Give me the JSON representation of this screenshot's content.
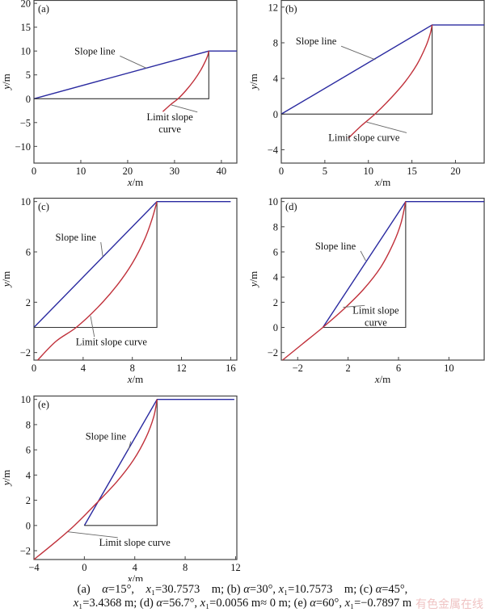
{
  "chart_data": [
    {
      "id": "a",
      "type": "line",
      "panel_label": "(a)",
      "xlabel": "x/m",
      "ylabel": "y/m",
      "xlim": [
        0,
        43.3
      ],
      "ylim": [
        -13.5,
        20.7
      ],
      "xticks": [
        0,
        10,
        20,
        30,
        40
      ],
      "yticks": [
        -10,
        -5,
        0,
        5,
        10,
        15,
        20
      ],
      "alpha_deg": 15,
      "x1": 30.7573,
      "series": [
        {
          "name": "Slope line",
          "color": "#2a2aa0",
          "points": [
            [
              0,
              0
            ],
            [
              37.32,
              10
            ],
            [
              43.3,
              10
            ]
          ]
        },
        {
          "name": "Base",
          "color": "#333333",
          "points": [
            [
              0,
              0
            ],
            [
              37.32,
              0
            ],
            [
              37.32,
              10
            ]
          ]
        },
        {
          "name": "Limit slope curve",
          "color": "#c0303a",
          "points": [
            [
              27.5,
              -2.7
            ],
            [
              29.2,
              -1.2
            ],
            [
              30.76,
              0
            ],
            [
              32.5,
              1.8
            ],
            [
              34.2,
              3.9
            ],
            [
              35.6,
              6.0
            ],
            [
              36.6,
              7.9
            ],
            [
              37.1,
              9.1
            ],
            [
              37.32,
              10
            ]
          ]
        }
      ],
      "annotations": [
        {
          "text": [
            "Slope line"
          ],
          "target": [
            24,
            6.4
          ],
          "label_at": [
            13,
            9.3
          ]
        },
        {
          "text": [
            "Limit slope",
            "curve"
          ],
          "target": [
            29.3,
            -1.3
          ],
          "label_at": [
            29,
            -4.5
          ]
        }
      ]
    },
    {
      "id": "b",
      "type": "line",
      "panel_label": "(b)",
      "xlabel": "x/m",
      "ylabel": "y/m",
      "xlim": [
        0,
        23.3
      ],
      "ylim": [
        -5.5,
        12.8
      ],
      "xticks": [
        0,
        5,
        10,
        15,
        20
      ],
      "yticks": [
        -4,
        0,
        4,
        8,
        12
      ],
      "alpha_deg": 30,
      "x1": 10.7573,
      "series": [
        {
          "name": "Slope line",
          "color": "#2a2aa0",
          "points": [
            [
              0,
              0
            ],
            [
              17.32,
              10
            ],
            [
              23.3,
              10
            ]
          ]
        },
        {
          "name": "Base",
          "color": "#333333",
          "points": [
            [
              0,
              0
            ],
            [
              17.32,
              0
            ],
            [
              17.32,
              10
            ]
          ]
        },
        {
          "name": "Limit slope curve",
          "color": "#c0303a",
          "points": [
            [
              7.7,
              -2.7
            ],
            [
              9.2,
              -1.3
            ],
            [
              10.76,
              0
            ],
            [
              12.5,
              1.7
            ],
            [
              14.2,
              3.6
            ],
            [
              15.6,
              5.6
            ],
            [
              16.6,
              7.6
            ],
            [
              17.1,
              9.0
            ],
            [
              17.32,
              10
            ]
          ]
        }
      ],
      "annotations": [
        {
          "text": [
            "Slope line"
          ],
          "target": [
            10.8,
            6.1
          ],
          "label_at": [
            4,
            7.8
          ]
        },
        {
          "text": [
            "Limit slope curve"
          ],
          "target": [
            9.8,
            -0.9
          ],
          "label_at": [
            9.5,
            -3.0
          ]
        }
      ]
    },
    {
      "id": "c",
      "type": "line",
      "panel_label": "(c)",
      "xlabel": "x/m",
      "ylabel": "y/m",
      "xlim": [
        0,
        16.5
      ],
      "ylim": [
        -2.6,
        10.3
      ],
      "xticks": [
        0,
        4,
        8,
        12,
        16
      ],
      "yticks": [
        -2,
        2,
        6,
        10
      ],
      "alpha_deg": 45,
      "x1": 3.4368,
      "series": [
        {
          "name": "Slope line",
          "color": "#2a2aa0",
          "points": [
            [
              0,
              0
            ],
            [
              10,
              10
            ],
            [
              16,
              10
            ]
          ]
        },
        {
          "name": "Base",
          "color": "#333333",
          "points": [
            [
              0,
              0
            ],
            [
              10,
              0
            ],
            [
              10,
              10
            ]
          ]
        },
        {
          "name": "Limit slope curve",
          "color": "#c0303a",
          "points": [
            [
              0.3,
              -2.6
            ],
            [
              1.8,
              -1.1
            ],
            [
              3.44,
              0
            ],
            [
              5.2,
              1.6
            ],
            [
              6.8,
              3.4
            ],
            [
              8.0,
              5.1
            ],
            [
              9.0,
              7.0
            ],
            [
              9.6,
              8.6
            ],
            [
              10,
              10
            ]
          ]
        }
      ],
      "annotations": [
        {
          "text": [
            "Slope line"
          ],
          "target": [
            5.6,
            5.6
          ],
          "label_at": [
            3.4,
            6.9
          ]
        },
        {
          "text": [
            "Limit slope curve"
          ],
          "target": [
            4.6,
            0.9
          ],
          "label_at": [
            6.3,
            -1.4
          ]
        }
      ]
    },
    {
      "id": "d",
      "type": "line",
      "panel_label": "(d)",
      "xlabel": "x/m",
      "ylabel": "y/m",
      "xlim": [
        -3.3,
        12.8
      ],
      "ylim": [
        -2.6,
        10.3
      ],
      "xticks": [
        -2,
        2,
        6,
        10
      ],
      "yticks": [
        -2,
        0,
        2,
        4,
        6,
        8,
        10
      ],
      "alpha_deg": 56.7,
      "x1": 0.0056,
      "series": [
        {
          "name": "Slope line",
          "color": "#2a2aa0",
          "points": [
            [
              0,
              0
            ],
            [
              6.57,
              10
            ],
            [
              12.8,
              10
            ]
          ]
        },
        {
          "name": "Base",
          "color": "#333333",
          "points": [
            [
              0,
              0
            ],
            [
              6.57,
              0
            ],
            [
              6.57,
              10
            ]
          ]
        },
        {
          "name": "Limit slope curve",
          "color": "#c0303a",
          "points": [
            [
              -3.2,
              -2.6
            ],
            [
              -1.6,
              -1.3
            ],
            [
              0,
              0
            ],
            [
              1.6,
              1.4
            ],
            [
              3.2,
              3.0
            ],
            [
              4.6,
              4.8
            ],
            [
              5.6,
              6.7
            ],
            [
              6.2,
              8.3
            ],
            [
              6.57,
              10
            ]
          ]
        }
      ],
      "annotations": [
        {
          "text": [
            "Slope line"
          ],
          "target": [
            3.4,
            5.3
          ],
          "label_at": [
            1.0,
            6.2
          ]
        },
        {
          "text": [
            "Limit slope",
            "curve"
          ],
          "target": [
            1.6,
            1.6
          ],
          "label_at": [
            4.2,
            1.1
          ]
        }
      ]
    },
    {
      "id": "e",
      "type": "line",
      "panel_label": "(e)",
      "xlabel": "x/m",
      "ylabel": "y/m",
      "xlim": [
        -4.0,
        12.1
      ],
      "ylim": [
        -2.7,
        10.3
      ],
      "xticks": [
        -4,
        0,
        4,
        8,
        12
      ],
      "yticks": [
        -2,
        0,
        2,
        4,
        6,
        8,
        10
      ],
      "alpha_deg": 60,
      "x1": -0.7897,
      "series": [
        {
          "name": "Slope line",
          "color": "#2a2aa0",
          "points": [
            [
              0,
              0
            ],
            [
              5.77,
              10
            ],
            [
              11.9,
              10
            ]
          ]
        },
        {
          "name": "Base",
          "color": "#333333",
          "points": [
            [
              0,
              0
            ],
            [
              5.77,
              0
            ],
            [
              5.77,
              10
            ]
          ]
        },
        {
          "name": "Limit slope curve",
          "color": "#c0303a",
          "points": [
            [
              -4.0,
              -2.7
            ],
            [
              -2.4,
              -1.4
            ],
            [
              -0.79,
              0
            ],
            [
              1.0,
              1.8
            ],
            [
              2.6,
              3.5
            ],
            [
              3.9,
              5.2
            ],
            [
              4.9,
              7.0
            ],
            [
              5.5,
              8.6
            ],
            [
              5.77,
              10
            ]
          ]
        }
      ],
      "annotations": [
        {
          "text": [
            "Slope line"
          ],
          "target": [
            3.5,
            6.0
          ],
          "label_at": [
            1.7,
            6.8
          ]
        },
        {
          "text": [
            "Limit slope curve"
          ],
          "target": [
            -1.3,
            -0.5
          ],
          "label_at": [
            4.0,
            -1.6
          ]
        }
      ]
    }
  ],
  "caption": {
    "line1": [
      {
        "t": "(a) "
      },
      {
        "t": "α",
        "i": true
      },
      {
        "t": "=15°, "
      },
      {
        "t": "x",
        "i": true
      },
      {
        "t": "₁=30.7573 m; (b) "
      },
      {
        "t": "α",
        "i": true
      },
      {
        "t": "=30°, "
      },
      {
        "t": "x",
        "i": true
      },
      {
        "t": "₁=10.7573 m; (c) "
      },
      {
        "t": "α",
        "i": true
      },
      {
        "t": "=45°,"
      }
    ],
    "line2": [
      {
        "t": "x",
        "i": true
      },
      {
        "t": "₁=3.4368 m; (d) "
      },
      {
        "t": "α",
        "i": true
      },
      {
        "t": "=56.7°, "
      },
      {
        "t": "x",
        "i": true
      },
      {
        "t": "₁=0.0056 m≈ 0 m; (e) "
      },
      {
        "t": "α",
        "i": true
      },
      {
        "t": "=60°, "
      },
      {
        "t": "x",
        "i": true
      },
      {
        "t": "₁=−0.7897 m"
      }
    ]
  },
  "watermark": "有色金属在线"
}
